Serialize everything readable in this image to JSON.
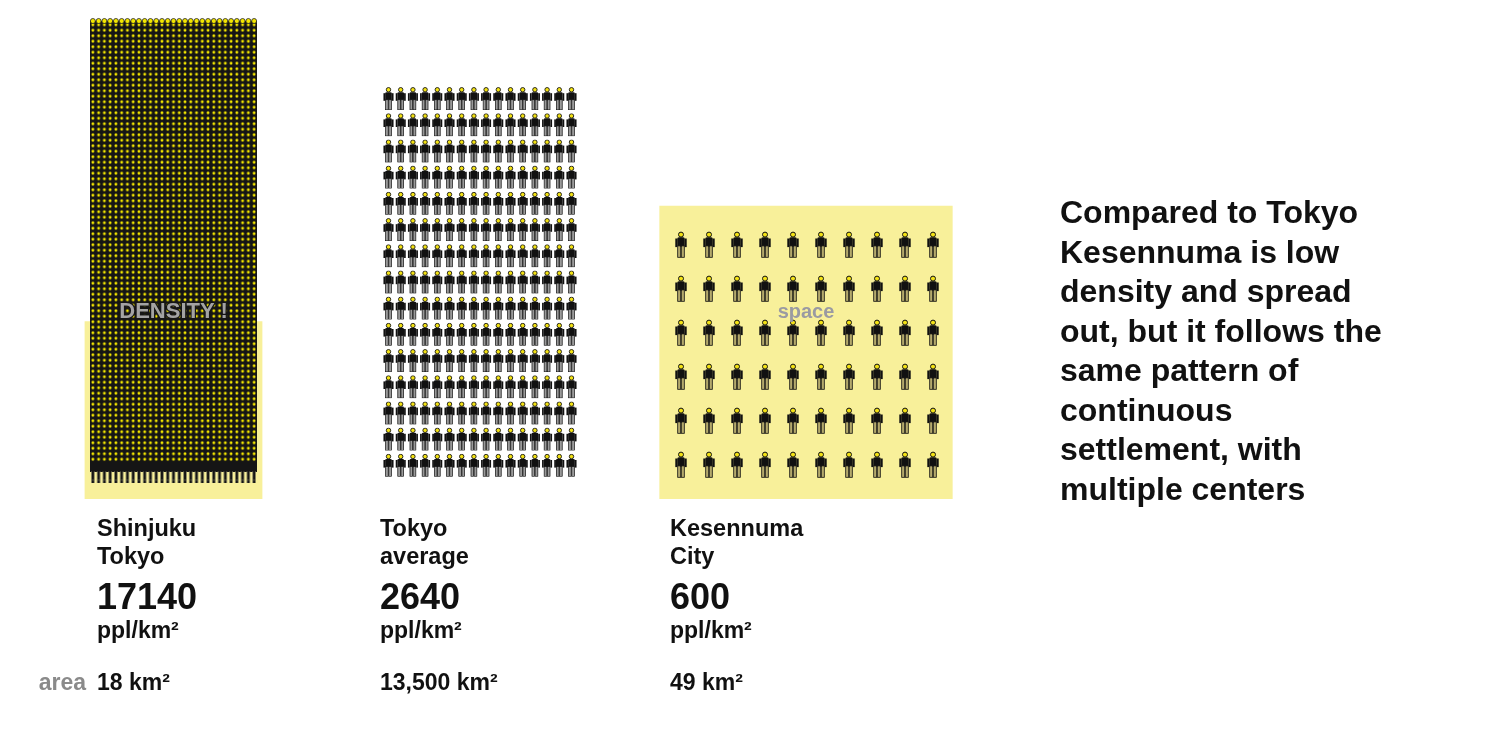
{
  "chart_data": {
    "type": "other",
    "categories": [
      "Shinjuku Tokyo",
      "Tokyo average",
      "Kesennuma City"
    ],
    "series": [
      {
        "values": [
          17140,
          2640,
          600
        ]
      },
      {
        "name": "area",
        "values": [
          18,
          13500,
          49
        ],
        "value_labels": [
          "18 km²",
          "13,500 km²",
          "49 km²"
        ],
        "colors": [
          "#f8f09a",
          null,
          "#f8f09a"
        ]
      }
    ],
    "data_labels": true,
    "ylabel": "ppl/km²",
    "annotations": [
      "DENSITY !",
      "space",
      "Compared to Tokyo Kesennuma is low density and spread out, but it follows the same pattern of continuous settlement, with multiple centers"
    ]
  }
}
